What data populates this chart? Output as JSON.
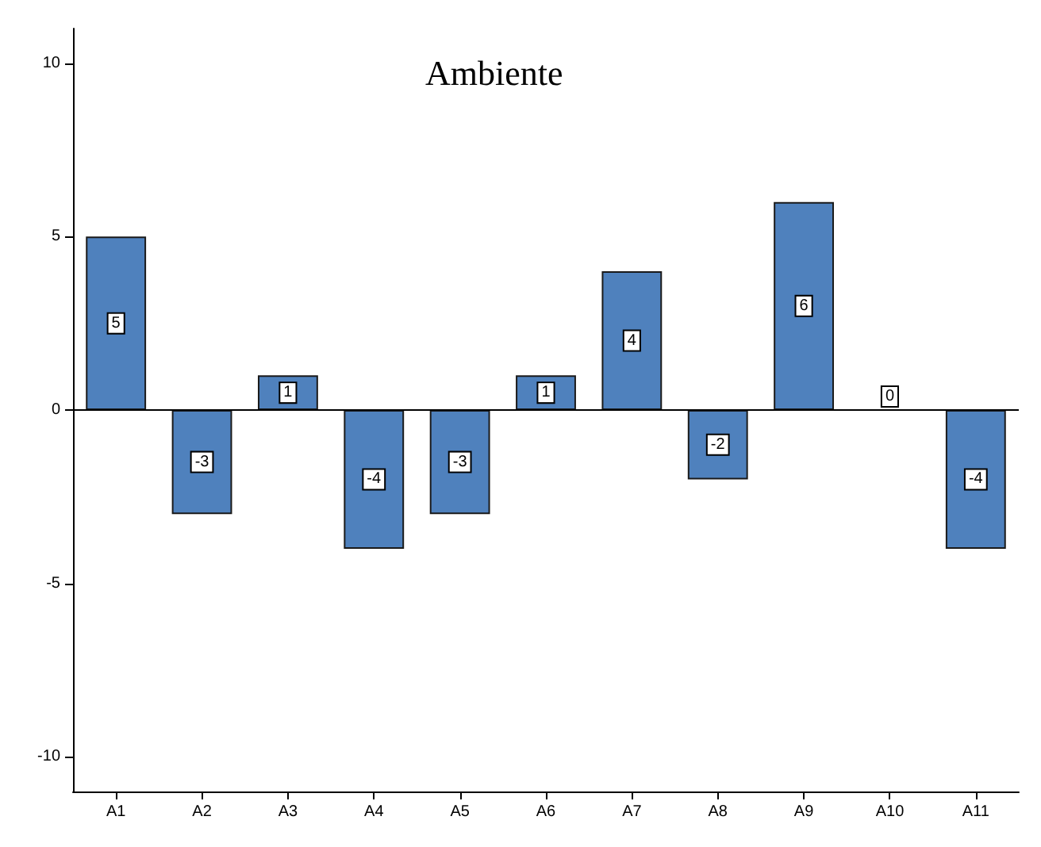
{
  "chart_data": {
    "type": "bar",
    "title": "Ambiente",
    "categories": [
      "A1",
      "A2",
      "A3",
      "A4",
      "A5",
      "A6",
      "A7",
      "A8",
      "A9",
      "A10",
      "A11"
    ],
    "values": [
      5,
      -3,
      1,
      -4,
      -3,
      1,
      4,
      -2,
      6,
      0,
      -4
    ],
    "color": "#4f81bd",
    "ylim": [
      -11,
      11
    ],
    "yticks": [
      -10,
      -5,
      0,
      5,
      10
    ],
    "ref_lines": [
      {
        "axis": "y",
        "value": 0,
        "color": "#000000"
      }
    ],
    "data_labels": true,
    "grid": false
  }
}
